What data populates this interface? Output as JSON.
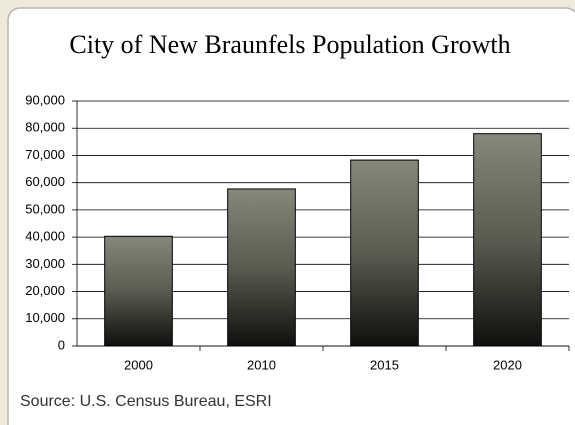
{
  "chart_data": {
    "type": "bar",
    "title": "City of New Braunfels Population Growth",
    "source": "Source: U.S. Census Bureau, ESRI",
    "categories": [
      "2000",
      "2010",
      "2015",
      "2020"
    ],
    "values": [
      40300,
      57700,
      68300,
      78000
    ],
    "color": "#86887a",
    "ylim": [
      0,
      90000
    ],
    "yticks": [
      0,
      {
        "value": 10000,
        "label": "10,000"
      },
      {
        "value": 20000,
        "label": "20,000"
      },
      {
        "value": 30000,
        "label": "30,000"
      },
      {
        "value": 40000,
        "label": "40,000"
      },
      {
        "value": 50000,
        "label": "50,000"
      },
      {
        "value": 60000,
        "label": "60,000"
      },
      {
        "value": 70000,
        "label": "70,000"
      },
      {
        "value": 80000,
        "label": "80,000"
      },
      {
        "value": 90000,
        "label": "90,000"
      }
    ],
    "grid": true
  }
}
